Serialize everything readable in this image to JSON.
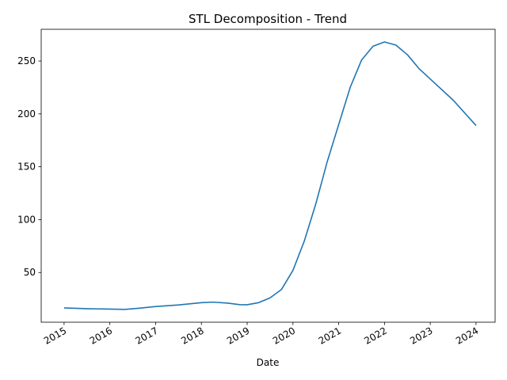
{
  "chart_data": {
    "type": "line",
    "title": "STL Decomposition - Trend",
    "xlabel": "Date",
    "ylabel": "",
    "grid": false,
    "x_ticks": [
      "2015",
      "2016",
      "2017",
      "2018",
      "2019",
      "2020",
      "2021",
      "2022",
      "2023",
      "2024"
    ],
    "y_ticks": [
      50,
      100,
      150,
      200,
      250
    ],
    "series": [
      {
        "color": "#1f77b4",
        "points": [
          [
            "2015-01",
            16.5
          ],
          [
            "2015-07",
            15.8
          ],
          [
            "2016-01",
            15.4
          ],
          [
            "2016-05",
            15.1
          ],
          [
            "2016-09",
            16.3
          ],
          [
            "2017-01",
            17.8
          ],
          [
            "2017-07",
            19.3
          ],
          [
            "2018-01",
            21.5
          ],
          [
            "2018-04",
            22.0
          ],
          [
            "2018-08",
            21.0
          ],
          [
            "2018-11",
            19.6
          ],
          [
            "2019-01",
            19.5
          ],
          [
            "2019-04",
            21.5
          ],
          [
            "2019-07",
            26.0
          ],
          [
            "2019-10",
            34.0
          ],
          [
            "2020-01",
            52.0
          ],
          [
            "2020-04",
            80.0
          ],
          [
            "2020-07",
            115.0
          ],
          [
            "2020-10",
            155.0
          ],
          [
            "2021-01",
            190.0
          ],
          [
            "2021-04",
            225.0
          ],
          [
            "2021-07",
            251.0
          ],
          [
            "2021-10",
            264.0
          ],
          [
            "2022-01",
            268.0
          ],
          [
            "2022-04",
            265.0
          ],
          [
            "2022-07",
            256.0
          ],
          [
            "2022-10",
            243.0
          ],
          [
            "2023-01",
            233.0
          ],
          [
            "2023-07",
            213.0
          ],
          [
            "2024-01",
            189.0
          ]
        ]
      }
    ],
    "xlim": [
      "2014-07",
      "2024-06"
    ],
    "ylim": [
      3,
      280
    ]
  }
}
